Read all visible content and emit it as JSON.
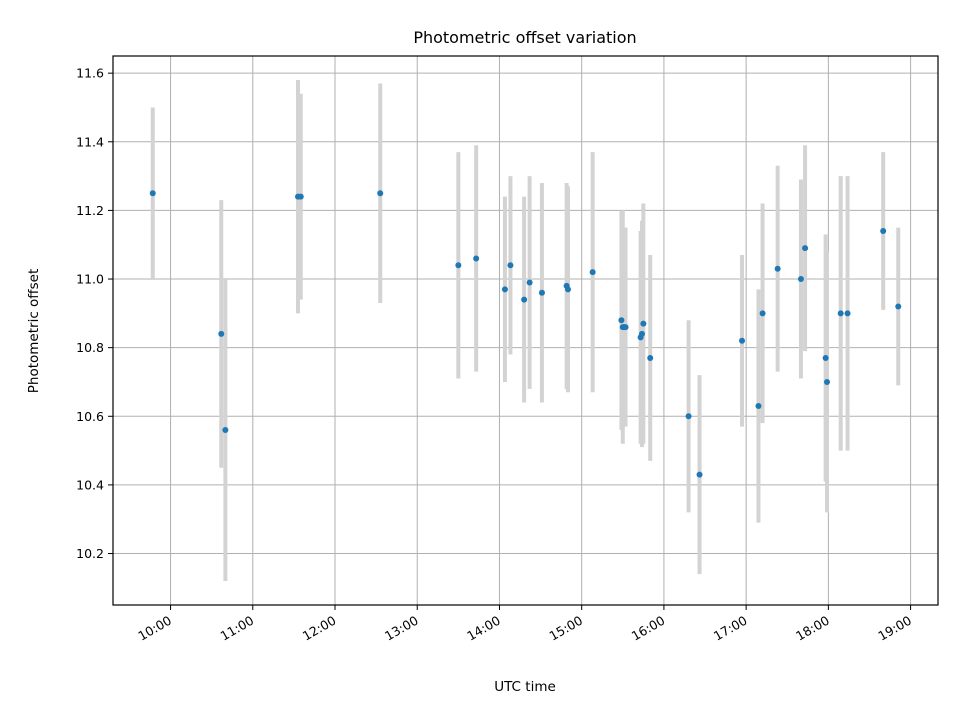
{
  "chart_data": {
    "type": "scatter",
    "title": "Photometric offset variation",
    "xlabel": "UTC time",
    "ylabel": "Photometric offset",
    "x_ticks": [
      "10:00",
      "11:00",
      "12:00",
      "13:00",
      "14:00",
      "15:00",
      "16:00",
      "17:00",
      "18:00",
      "19:00"
    ],
    "y_ticks": [
      "10.2",
      "10.4",
      "10.6",
      "10.8",
      "11.0",
      "11.2",
      "11.4",
      "11.6"
    ],
    "xlim": [
      "09:18",
      "19:20"
    ],
    "ylim": [
      10.05,
      11.65
    ],
    "grid": true,
    "marker_color": "#1f77b4",
    "errorbar_color": "#d3d3d3",
    "points": [
      {
        "time": "09:47",
        "y": 11.25,
        "err": 0.25
      },
      {
        "time": "10:37",
        "y": 10.84,
        "err": 0.39
      },
      {
        "time": "10:40",
        "y": 10.56,
        "err": 0.44
      },
      {
        "time": "11:33",
        "y": 11.24,
        "err": 0.34
      },
      {
        "time": "11:35",
        "y": 11.24,
        "err": 0.3
      },
      {
        "time": "12:33",
        "y": 11.25,
        "err": 0.32
      },
      {
        "time": "13:30",
        "y": 11.04,
        "err": 0.33
      },
      {
        "time": "13:43",
        "y": 11.06,
        "err": 0.33
      },
      {
        "time": "14:04",
        "y": 10.97,
        "err": 0.27
      },
      {
        "time": "14:08",
        "y": 11.04,
        "err": 0.26
      },
      {
        "time": "14:18",
        "y": 10.94,
        "err": 0.3
      },
      {
        "time": "14:22",
        "y": 10.99,
        "err": 0.31
      },
      {
        "time": "14:31",
        "y": 10.96,
        "err": 0.32
      },
      {
        "time": "14:49",
        "y": 10.98,
        "err": 0.3
      },
      {
        "time": "14:50",
        "y": 10.97,
        "err": 0.3
      },
      {
        "time": "15:08",
        "y": 11.02,
        "err": 0.35
      },
      {
        "time": "15:29",
        "y": 10.88,
        "err": 0.32
      },
      {
        "time": "15:30",
        "y": 10.86,
        "err": 0.34
      },
      {
        "time": "15:31",
        "y": 10.86,
        "err": 0.28
      },
      {
        "time": "15:32",
        "y": 10.86,
        "err": 0.29
      },
      {
        "time": "15:43",
        "y": 10.83,
        "err": 0.31
      },
      {
        "time": "15:44",
        "y": 10.84,
        "err": 0.33
      },
      {
        "time": "15:45",
        "y": 10.87,
        "err": 0.35
      },
      {
        "time": "15:50",
        "y": 10.77,
        "err": 0.3
      },
      {
        "time": "16:18",
        "y": 10.6,
        "err": 0.28
      },
      {
        "time": "16:26",
        "y": 10.43,
        "err": 0.29
      },
      {
        "time": "16:57",
        "y": 10.82,
        "err": 0.25
      },
      {
        "time": "17:09",
        "y": 10.63,
        "err": 0.34
      },
      {
        "time": "17:12",
        "y": 10.9,
        "err": 0.32
      },
      {
        "time": "17:23",
        "y": 11.03,
        "err": 0.3
      },
      {
        "time": "17:40",
        "y": 11.0,
        "err": 0.29
      },
      {
        "time": "17:43",
        "y": 11.09,
        "err": 0.3
      },
      {
        "time": "17:58",
        "y": 10.77,
        "err": 0.36
      },
      {
        "time": "17:59",
        "y": 10.7,
        "err": 0.38
      },
      {
        "time": "18:09",
        "y": 10.9,
        "err": 0.4
      },
      {
        "time": "18:14",
        "y": 10.9,
        "err": 0.4
      },
      {
        "time": "18:40",
        "y": 11.14,
        "err": 0.23
      },
      {
        "time": "18:51",
        "y": 10.92,
        "err": 0.23
      }
    ]
  }
}
